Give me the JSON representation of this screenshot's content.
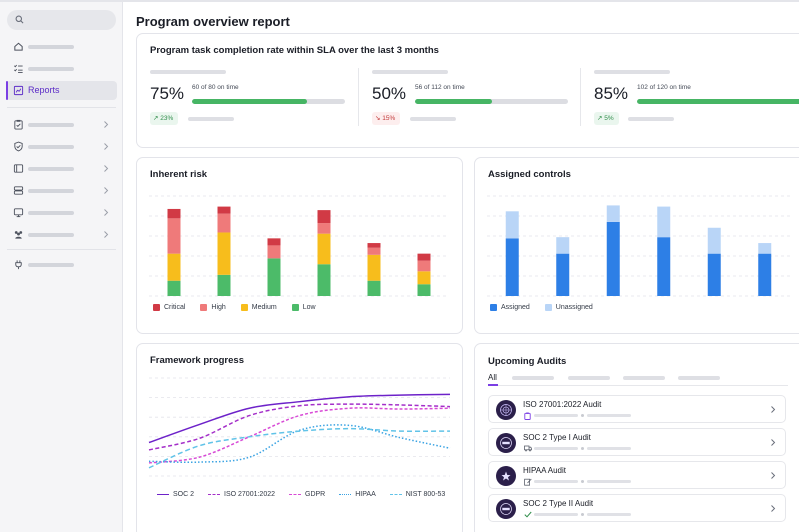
{
  "app": {
    "title": "Program overview report"
  },
  "sidebar": {
    "items": [
      {
        "icon": "home-icon",
        "label": ""
      },
      {
        "icon": "task-list-icon",
        "label": ""
      },
      {
        "icon": "reports-icon",
        "label": "Reports",
        "active": true
      },
      {
        "icon": "clipboard-icon",
        "label": ""
      },
      {
        "icon": "shield-icon",
        "label": ""
      },
      {
        "icon": "folder-icon",
        "label": ""
      },
      {
        "icon": "database-icon",
        "label": ""
      },
      {
        "icon": "monitor-icon",
        "label": ""
      },
      {
        "icon": "people-icon",
        "label": ""
      },
      {
        "icon": "plug-icon",
        "label": ""
      }
    ]
  },
  "sla": {
    "title": "Program task completion rate within SLA over the last 3 months",
    "metrics": [
      {
        "pct": "75%",
        "on_time": "60 of 80 on time",
        "progress": 0.75,
        "change": "23%",
        "trend": "up"
      },
      {
        "pct": "50%",
        "on_time": "56 of 112 on time",
        "progress": 0.5,
        "change": "15%",
        "trend": "down"
      },
      {
        "pct": "85%",
        "on_time": "102 of 120 on time",
        "progress": 0.85,
        "change": "5%",
        "trend": "up"
      }
    ]
  },
  "inherent_risk": {
    "title": "Inherent risk",
    "legend": [
      "Critical",
      "High",
      "Medium",
      "Low"
    ],
    "colors": {
      "Critical": "#d13a45",
      "High": "#ef7a7a",
      "Medium": "#f7bd1c",
      "Low": "#4cbb69"
    }
  },
  "assigned_controls": {
    "title": "Assigned controls",
    "legend": [
      "Assigned",
      "Unassigned"
    ],
    "colors": {
      "Assigned": "#2d7fe6",
      "Unassigned": "#b9d5f7"
    }
  },
  "framework_progress": {
    "title": "Framework progress",
    "legend": [
      "SOC 2",
      "ISO 27001:2022",
      "GDPR",
      "HIPAA",
      "NIST 800-53"
    ],
    "colors": {
      "SOC 2": "#6d22c9",
      "ISO 27001:2022": "#a42fc9",
      "GDPR": "#d84ad6",
      "HIPAA": "#3aa3e3",
      "NIST 800-53": "#61c3e8"
    }
  },
  "audits": {
    "title": "Upcoming Audits",
    "tab_all": "All",
    "rows": [
      {
        "name": "ISO 27001:2022 Audit",
        "badge": "ISO"
      },
      {
        "name": "SOC 2 Type I Audit",
        "badge": "SOC2"
      },
      {
        "name": "HIPAA Audit",
        "badge": "HIPAA"
      },
      {
        "name": "SOC 2 Type II Audit",
        "badge": "SOC2"
      }
    ]
  },
  "chart_data": [
    {
      "type": "bar",
      "title": "Inherent risk",
      "stacked": true,
      "categories": [
        "1",
        "2",
        "3",
        "4",
        "5",
        "6"
      ],
      "series": [
        {
          "name": "Low",
          "values": [
            1.3,
            1.8,
            3.2,
            2.7,
            1.3,
            1.0
          ]
        },
        {
          "name": "Medium",
          "values": [
            2.3,
            3.6,
            0,
            2.6,
            2.2,
            1.1
          ]
        },
        {
          "name": "High",
          "values": [
            3.0,
            1.6,
            1.1,
            0.9,
            0.6,
            0.9
          ]
        },
        {
          "name": "Critical",
          "values": [
            0.8,
            0.6,
            0.6,
            1.1,
            0.4,
            0.6
          ]
        }
      ],
      "ylim": [
        0,
        8.5
      ],
      "grid": true,
      "legend": "bottom"
    },
    {
      "type": "bar",
      "title": "Assigned controls",
      "stacked": true,
      "categories": [
        "1",
        "2",
        "3",
        "4",
        "5",
        "6"
      ],
      "series": [
        {
          "name": "Assigned",
          "values": [
            4.9,
            3.6,
            6.3,
            5.0,
            3.6,
            3.6
          ]
        },
        {
          "name": "Unassigned",
          "values": [
            2.3,
            1.4,
            1.4,
            2.6,
            2.2,
            0.9
          ]
        }
      ],
      "ylim": [
        0,
        8.5
      ],
      "grid": true,
      "legend": "bottom"
    },
    {
      "type": "line",
      "title": "Framework progress",
      "x": [
        0,
        1,
        2,
        3,
        4,
        5,
        6
      ],
      "series": [
        {
          "name": "SOC 2",
          "values": [
            2.1,
            4.3,
            6.3,
            7.1,
            7.7,
            7.9,
            8.0
          ]
        },
        {
          "name": "ISO 27001:2022",
          "values": [
            1.2,
            2.6,
            5.4,
            6.6,
            6.8,
            6.7,
            6.5
          ]
        },
        {
          "name": "GDPR",
          "values": [
            -0.4,
            0.3,
            2.8,
            5.4,
            6.3,
            6.2,
            6.3
          ]
        },
        {
          "name": "HIPAA",
          "values": [
            -0.2,
            -0.3,
            0.3,
            3.6,
            4.2,
            2.7,
            1.4
          ]
        },
        {
          "name": "NIST 800-53",
          "values": [
            -1.0,
            1.7,
            2.8,
            3.5,
            3.8,
            3.5,
            3.5
          ]
        }
      ],
      "ylim": [
        -2,
        10
      ],
      "grid": true,
      "legend": "bottom"
    }
  ]
}
